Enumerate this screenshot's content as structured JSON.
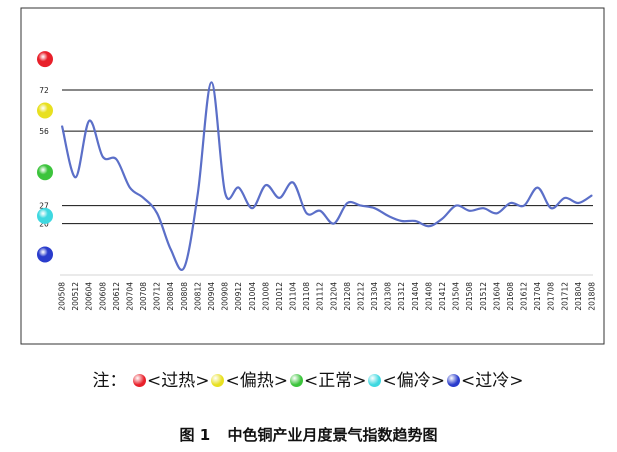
{
  "chart_data": {
    "type": "line",
    "title": "中色铜产业月度景气指数趋势图",
    "caption_number": "图 1",
    "xlabel": "",
    "ylabel": "",
    "ylim": [
      0,
      100
    ],
    "grid": false,
    "threshold_lines": [
      {
        "value": 72,
        "label": "72"
      },
      {
        "value": 56,
        "label": "56"
      },
      {
        "value": 27,
        "label": "27"
      },
      {
        "value": 20,
        "label": "20"
      }
    ],
    "signal_lights": [
      {
        "state": "过热",
        "color": "#e8202a",
        "value": 84
      },
      {
        "state": "偏热",
        "color": "#e8e020",
        "value": 64
      },
      {
        "state": "正常",
        "color": "#3cc43c",
        "value": 40
      },
      {
        "state": "偏冷",
        "color": "#3ed8e0",
        "value": 23
      },
      {
        "state": "过冷",
        "color": "#2a3ccc",
        "value": 8
      }
    ],
    "x_tick_labels": [
      "200508",
      "200512",
      "200604",
      "200608",
      "200612",
      "200704",
      "200708",
      "200712",
      "200804",
      "200808",
      "200812",
      "200904",
      "200908",
      "200912",
      "201004",
      "201008",
      "201012",
      "201104",
      "201108",
      "201112",
      "201204",
      "201208",
      "201212",
      "201304",
      "201308",
      "201312",
      "201404",
      "201408",
      "201412",
      "201504",
      "201508",
      "201512",
      "201604",
      "201608",
      "201612",
      "201704",
      "201708",
      "201712",
      "201804",
      "201808"
    ],
    "series": [
      {
        "color": "#5b6fc8",
        "x": [
          "200508",
          "200512",
          "200604",
          "200608",
          "200612",
          "200704",
          "200708",
          "200712",
          "200804",
          "200808",
          "200812",
          "200904",
          "200908",
          "200912",
          "201004",
          "201008",
          "201012",
          "201104",
          "201108",
          "201112",
          "201204",
          "201208",
          "201212",
          "201304",
          "201308",
          "201312",
          "201404",
          "201408",
          "201412",
          "201504",
          "201508",
          "201512",
          "201604",
          "201608",
          "201612",
          "201704",
          "201708",
          "201712",
          "201804",
          "201808"
        ],
        "values": [
          58,
          38,
          60,
          46,
          45,
          34,
          30,
          24,
          10,
          3,
          32,
          75,
          32,
          34,
          26,
          35,
          30,
          36,
          24,
          25,
          20,
          28,
          27,
          26,
          23,
          21,
          21,
          19,
          22,
          27,
          25,
          26,
          24,
          28,
          27,
          34,
          26,
          30,
          28,
          31
        ]
      }
    ]
  },
  "legend": {
    "prefix": "注：",
    "items": [
      {
        "label": "<过热>",
        "color": "#e8202a"
      },
      {
        "label": "<偏热>",
        "color": "#e8e020"
      },
      {
        "label": "<正常>",
        "color": "#3cc43c"
      },
      {
        "label": "<偏冷>",
        "color": "#3ed8e0"
      },
      {
        "label": "<过冷>",
        "color": "#2a3ccc"
      }
    ]
  }
}
